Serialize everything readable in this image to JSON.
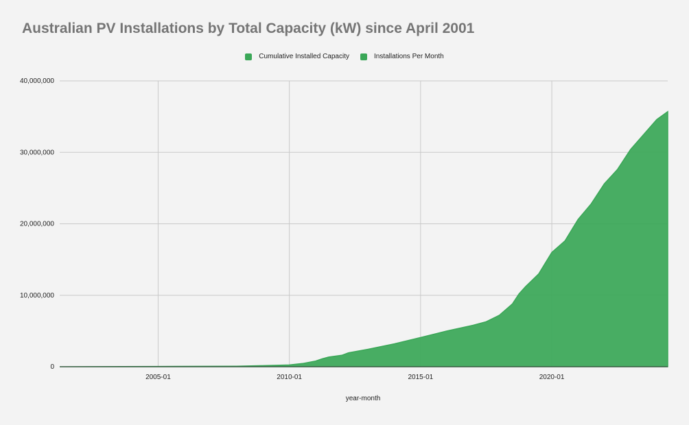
{
  "chart_data": {
    "type": "area",
    "title": "Australian PV Installations by Total Capacity (kW) since April 2001",
    "xlabel": "year-month",
    "ylabel": "",
    "legend": {
      "placement": "top-center",
      "entries": [
        {
          "name": "Cumulative Installed Capacity",
          "color": "#3aa757"
        },
        {
          "name": "Installations Per Month",
          "color": "#3aa757"
        }
      ]
    },
    "grid": true,
    "xlim": [
      "2001-04",
      "2024-06"
    ],
    "ylim": [
      0,
      40000000
    ],
    "x_ticks": [
      "2005-01",
      "2010-01",
      "2015-01",
      "2020-01"
    ],
    "y_ticks": [
      {
        "value": 0,
        "label": "0"
      },
      {
        "value": 10000000,
        "label": "10,000,000"
      },
      {
        "value": 20000000,
        "label": "20,000,000"
      },
      {
        "value": 30000000,
        "label": "30,000,000"
      },
      {
        "value": 40000000,
        "label": "40,000,000"
      }
    ],
    "series": [
      {
        "name": "Cumulative Installed Capacity",
        "color": "#3aa757",
        "points": [
          [
            "2001-04",
            0
          ],
          [
            "2005-01",
            40000
          ],
          [
            "2008-01",
            80000
          ],
          [
            "2009-01",
            150000
          ],
          [
            "2010-01",
            250000
          ],
          [
            "2010-07",
            450000
          ],
          [
            "2011-01",
            800000
          ],
          [
            "2011-04",
            1100000
          ],
          [
            "2011-07",
            1350000
          ],
          [
            "2012-01",
            1600000
          ],
          [
            "2012-04",
            1950000
          ],
          [
            "2013-01",
            2450000
          ],
          [
            "2014-01",
            3200000
          ],
          [
            "2015-01",
            4100000
          ],
          [
            "2016-01",
            5000000
          ],
          [
            "2017-01",
            5800000
          ],
          [
            "2017-07",
            6300000
          ],
          [
            "2018-01",
            7200000
          ],
          [
            "2018-07",
            8800000
          ],
          [
            "2018-10",
            10200000
          ],
          [
            "2019-01",
            11200000
          ],
          [
            "2019-07",
            13000000
          ],
          [
            "2020-01",
            16000000
          ],
          [
            "2020-07",
            17600000
          ],
          [
            "2021-01",
            20600000
          ],
          [
            "2021-07",
            22800000
          ],
          [
            "2022-01",
            25600000
          ],
          [
            "2022-07",
            27600000
          ],
          [
            "2023-01",
            30400000
          ],
          [
            "2023-07",
            32500000
          ],
          [
            "2024-01",
            34600000
          ],
          [
            "2024-06",
            35700000
          ]
        ]
      },
      {
        "name": "Installations Per Month",
        "color": "#3aa757",
        "points": []
      }
    ]
  }
}
